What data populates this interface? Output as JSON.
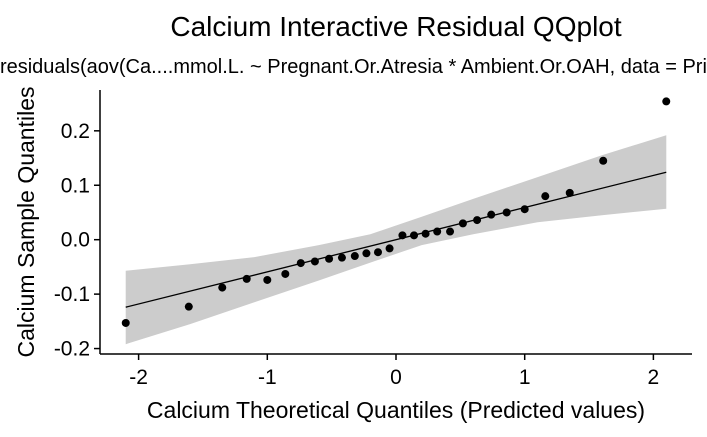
{
  "chart_data": {
    "type": "scatter",
    "title": "Calcium Interactive Residual QQplot",
    "subtitle": "residuals(aov(Ca....mmol.L. ~ Pregnant.Or.Atresia * Ambient.Or.OAH, data = Primary.df)))",
    "xlabel": "Calcium Theoretical Quantiles (Predicted values)",
    "ylabel": "Calcium Sample Quantiles",
    "xlim": [
      -2.3,
      2.3
    ],
    "ylim": [
      -0.21,
      0.275
    ],
    "x_ticks": [
      -2,
      -1,
      0,
      1,
      2
    ],
    "x_tick_labels": [
      "-2",
      "-1",
      "0",
      "1",
      "2"
    ],
    "y_ticks": [
      -0.2,
      -0.1,
      0.0,
      0.1,
      0.2
    ],
    "y_tick_labels": [
      "-0.2",
      "-0.1",
      "0.0",
      "0.1",
      "0.2"
    ],
    "grid": false,
    "points": [
      {
        "x": -2.1,
        "y": -0.153
      },
      {
        "x": -1.61,
        "y": -0.123
      },
      {
        "x": -1.35,
        "y": -0.088
      },
      {
        "x": -1.16,
        "y": -0.072
      },
      {
        "x": -1.0,
        "y": -0.074
      },
      {
        "x": -0.86,
        "y": -0.063
      },
      {
        "x": -0.74,
        "y": -0.043
      },
      {
        "x": -0.63,
        "y": -0.04
      },
      {
        "x": -0.52,
        "y": -0.035
      },
      {
        "x": -0.42,
        "y": -0.033
      },
      {
        "x": -0.32,
        "y": -0.03
      },
      {
        "x": -0.23,
        "y": -0.025
      },
      {
        "x": -0.14,
        "y": -0.023
      },
      {
        "x": -0.05,
        "y": -0.016
      },
      {
        "x": 0.05,
        "y": 0.008
      },
      {
        "x": 0.14,
        "y": 0.008
      },
      {
        "x": 0.23,
        "y": 0.011
      },
      {
        "x": 0.32,
        "y": 0.015
      },
      {
        "x": 0.42,
        "y": 0.015
      },
      {
        "x": 0.52,
        "y": 0.03
      },
      {
        "x": 0.63,
        "y": 0.036
      },
      {
        "x": 0.74,
        "y": 0.046
      },
      {
        "x": 0.86,
        "y": 0.05
      },
      {
        "x": 1.0,
        "y": 0.056
      },
      {
        "x": 1.16,
        "y": 0.08
      },
      {
        "x": 1.35,
        "y": 0.086
      },
      {
        "x": 1.61,
        "y": 0.145
      },
      {
        "x": 2.1,
        "y": 0.254
      }
    ],
    "reference_line": {
      "x": [
        -2.1,
        2.1
      ],
      "y": [
        -0.124,
        0.124
      ]
    },
    "confidence_band": {
      "x": [
        -2.1,
        -1.6,
        -1.1,
        -0.6,
        -0.2,
        0.2,
        0.6,
        1.1,
        1.6,
        2.1
      ],
      "lower": [
        -0.192,
        -0.155,
        -0.115,
        -0.075,
        -0.042,
        -0.01,
        0.01,
        0.032,
        0.045,
        0.057
      ],
      "upper": [
        -0.057,
        -0.045,
        -0.032,
        -0.01,
        0.01,
        0.042,
        0.075,
        0.115,
        0.155,
        0.192
      ]
    },
    "colors": {
      "points": "#000000",
      "line": "#000000",
      "band": "#cccccc",
      "axis": "#000000"
    }
  }
}
